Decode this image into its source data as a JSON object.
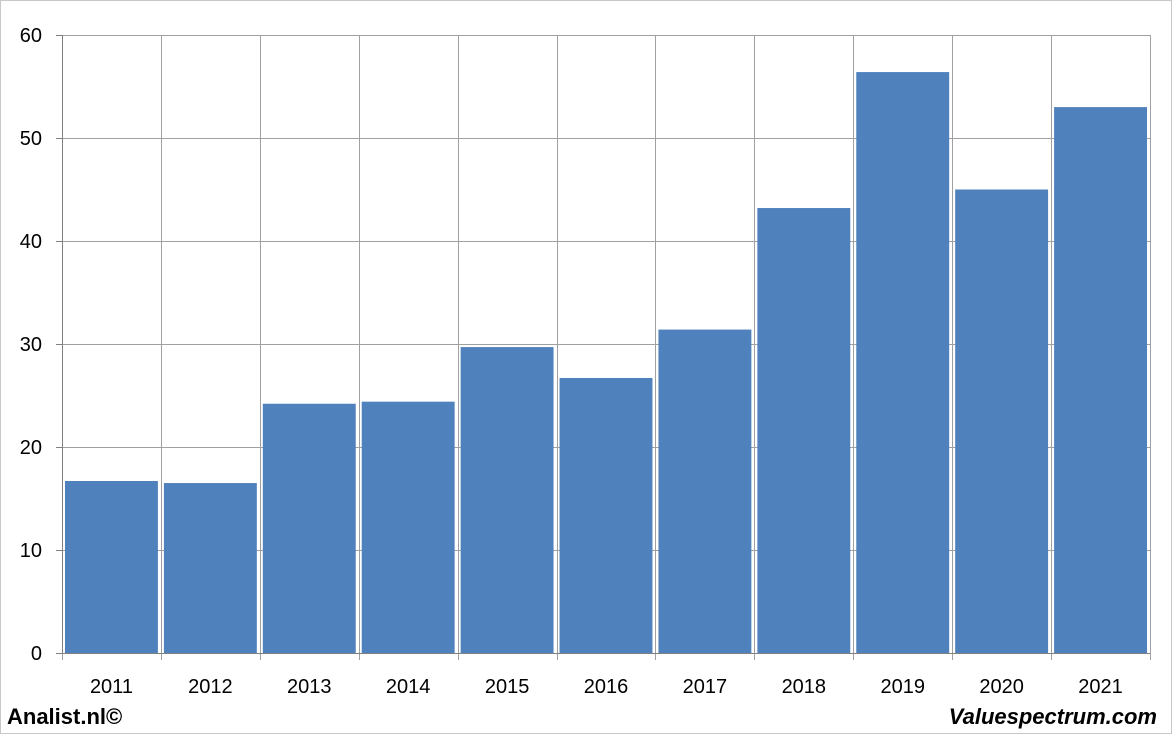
{
  "chart_data": {
    "type": "bar",
    "categories": [
      "2011",
      "2012",
      "2013",
      "2014",
      "2015",
      "2016",
      "2017",
      "2018",
      "2019",
      "2020",
      "2021"
    ],
    "series": [
      {
        "values": [
          16.7,
          16.5,
          24.2,
          24.4,
          29.7,
          26.7,
          31.4,
          43.2,
          56.4,
          45.0,
          53.0
        ]
      }
    ],
    "ylim": [
      0,
      60
    ],
    "yticks": [
      0,
      10,
      20,
      30,
      40,
      50,
      60
    ],
    "grid": true,
    "bar_color": "#4f81bd",
    "grid_color": "#a0a0a0",
    "title": "",
    "xlabel": "",
    "ylabel": ""
  },
  "footer": {
    "left_credit": "Analist.nl©",
    "right_credit": "Valuespectrum.com"
  }
}
